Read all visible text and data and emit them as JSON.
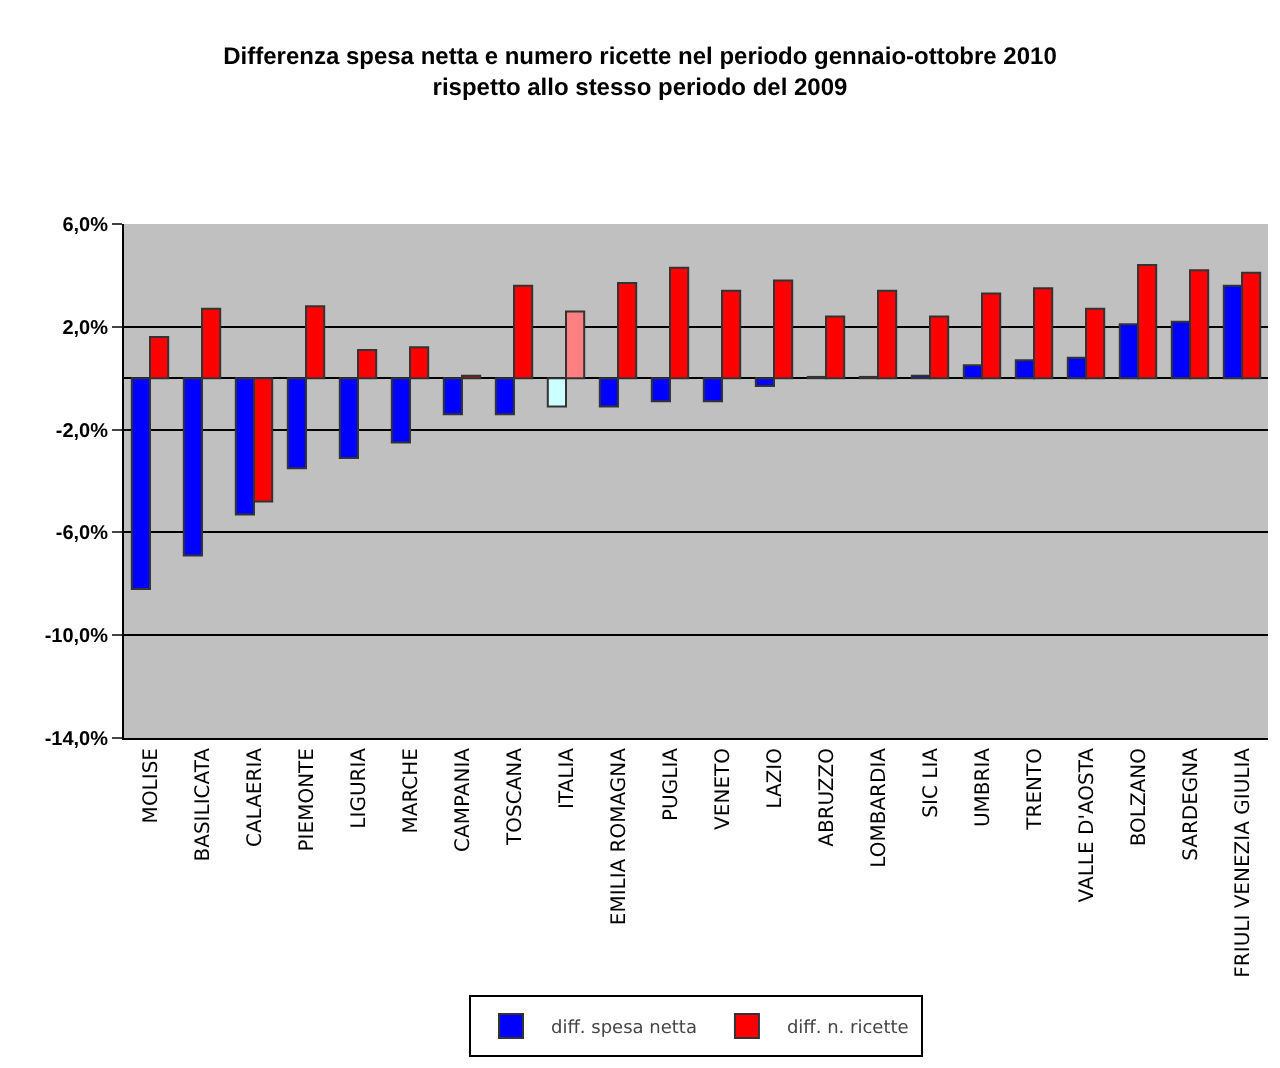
{
  "chart_data": {
    "type": "bar",
    "title": "Differenza spesa netta e numero ricette nel periodo gennaio-ottobre 2010\nrispetto allo stesso periodo del 2009",
    "categories": [
      "MOLISE",
      "BASILICATA",
      "CALAERIA",
      "PIEMONTE",
      "LIGURIA",
      "MARCHE",
      "CAMPANIA",
      "TOSCANA",
      "ITALIA",
      "EMILIA ROMAGNA",
      "PUGLIA",
      "VENETO",
      "LAZIO",
      "ABRUZZO",
      "LOMBARDIA",
      "SIC LIA",
      "UMBRIA",
      "TRENTO",
      "VALLE D'AOSTA",
      "BOLZANO",
      "SARDEGNA",
      "FRIULI VENEZIA GIULIA"
    ],
    "series": [
      {
        "name": "diff. spesa netta",
        "color": "#0000ff",
        "colors": [
          null,
          null,
          null,
          null,
          null,
          null,
          null,
          null,
          "#ccffff",
          null,
          null,
          null,
          null,
          null,
          null,
          null,
          null,
          null,
          null,
          null,
          null,
          null
        ],
        "values": [
          -8.2,
          -6.9,
          -5.3,
          -3.5,
          -3.1,
          -2.5,
          -1.4,
          -1.4,
          -1.1,
          -1.1,
          -0.9,
          -0.9,
          -0.3,
          0.05,
          0.05,
          0.1,
          0.5,
          0.7,
          0.8,
          2.1,
          2.2,
          3.6
        ]
      },
      {
        "name": "diff. n. ricette",
        "color": "#ff0000",
        "colors": [
          null,
          null,
          null,
          null,
          null,
          null,
          null,
          null,
          "#ff8080",
          null,
          null,
          null,
          null,
          null,
          null,
          null,
          null,
          null,
          null,
          null,
          null,
          null
        ],
        "values": [
          1.6,
          2.7,
          -4.8,
          2.8,
          1.1,
          1.2,
          0.1,
          3.6,
          2.6,
          3.7,
          4.3,
          3.4,
          3.8,
          2.4,
          3.4,
          2.4,
          3.3,
          3.5,
          2.7,
          4.4,
          4.2,
          4.1
        ]
      }
    ],
    "ylim": [
      -14,
      6
    ],
    "yticks": [
      {
        "value": -14,
        "label": "-14,0%"
      },
      {
        "value": -10,
        "label": "-10,0%"
      },
      {
        "value": -6,
        "label": "-6,0%"
      },
      {
        "value": -2,
        "label": "-2,0%"
      },
      {
        "value": 2,
        "label": "2,0%"
      },
      {
        "value": 6,
        "label": "6,0%"
      }
    ],
    "grid": "y",
    "legend": "bottom"
  }
}
